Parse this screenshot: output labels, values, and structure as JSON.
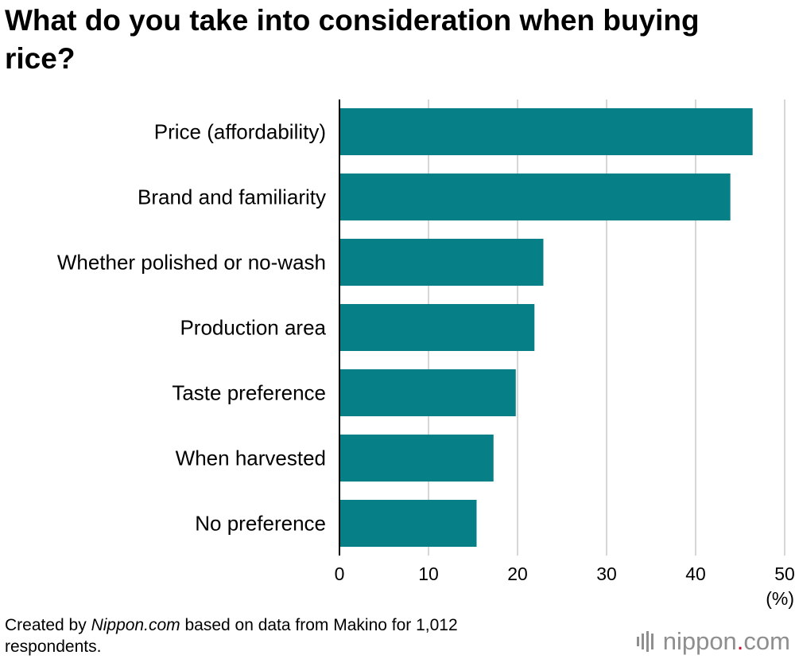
{
  "chart_data": {
    "type": "bar",
    "orientation": "horizontal",
    "title": "What do you take into consideration when buying rice?",
    "categories": [
      "Price (affordability)",
      "Brand and familiarity",
      "Whether polished or no-wash",
      "Production area",
      "Taste preference",
      "When harvested",
      "No preference"
    ],
    "values": [
      46.4,
      43.9,
      22.9,
      21.9,
      19.8,
      17.3,
      15.4
    ],
    "xlim": [
      0,
      50
    ],
    "xticks": [
      0,
      10,
      20,
      30,
      40,
      50
    ],
    "xunit": "(%)",
    "grid": true,
    "bar_color": "#077f87"
  },
  "footer": {
    "source_prefix": "Created by ",
    "source_brand": "Nippon.com",
    "source_suffix": " based on data from Makino for 1,012 respondents.",
    "logo_name": "nippon",
    "logo_dot": ".",
    "logo_tld": "com"
  },
  "colors": {
    "bar": "#077f87",
    "grid": "#c8c8c8",
    "logo_gray": "#8e8e8e",
    "logo_red": "#c8102e"
  }
}
